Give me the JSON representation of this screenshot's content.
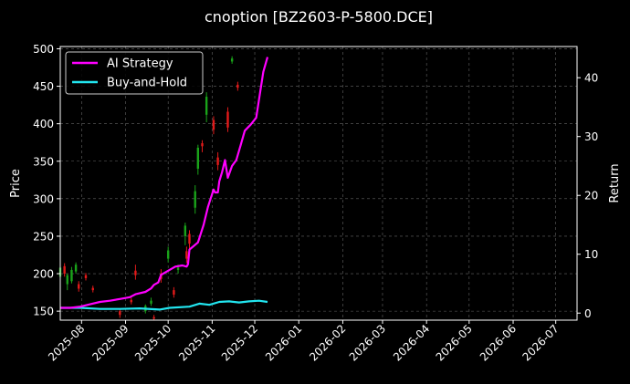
{
  "chart_data": {
    "type": "line",
    "title": "cnoption [BZ2603-P-5800.DCE]",
    "xlabel": "",
    "ylabel_left": "Price",
    "ylabel_right": "Return",
    "x_ticks": [
      "2025-08",
      "2025-09",
      "2025-10",
      "2025-11",
      "2025-12",
      "2026-01",
      "2026-02",
      "2026-03",
      "2026-04",
      "2026-05",
      "2026-06",
      "2026-07"
    ],
    "x_range": [
      "2025-07-17",
      "2026-07-16"
    ],
    "y_left_ticks": [
      150,
      200,
      250,
      300,
      350,
      400,
      450,
      500
    ],
    "y_left_range": [
      138,
      503
    ],
    "y_right_ticks": [
      0,
      10,
      20,
      30,
      40
    ],
    "y_right_range": [
      -1.2,
      45.3
    ],
    "grid": true,
    "legend_position": "top-left",
    "colors": {
      "ai": "#ff00ff",
      "bh": "#22e5ef",
      "up": "#1aa31a",
      "down": "#e31a1a",
      "grid": "#666666"
    },
    "series": [
      {
        "name": "AI Strategy",
        "axis": "right",
        "points": [
          [
            "2025-07-17",
            0.9
          ],
          [
            "2025-07-24",
            0.9
          ],
          [
            "2025-07-31",
            1.1
          ],
          [
            "2025-08-07",
            1.5
          ],
          [
            "2025-08-14",
            1.9
          ],
          [
            "2025-08-21",
            2.1
          ],
          [
            "2025-08-28",
            2.4
          ],
          [
            "2025-09-04",
            2.7
          ],
          [
            "2025-09-08",
            3.2
          ],
          [
            "2025-09-15",
            3.6
          ],
          [
            "2025-09-19",
            4.2
          ],
          [
            "2025-09-21",
            4.8
          ],
          [
            "2025-09-24",
            5.2
          ],
          [
            "2025-09-26",
            6.5
          ],
          [
            "2025-10-01",
            7.2
          ],
          [
            "2025-10-06",
            7.9
          ],
          [
            "2025-10-11",
            8.1
          ],
          [
            "2025-10-14",
            7.9
          ],
          [
            "2025-10-15",
            8.3
          ],
          [
            "2025-10-16",
            10.8
          ],
          [
            "2025-10-22",
            12.0
          ],
          [
            "2025-10-26",
            15.0
          ],
          [
            "2025-10-29",
            18.0
          ],
          [
            "2025-11-02",
            21.0
          ],
          [
            "2025-11-03",
            20.5
          ],
          [
            "2025-11-05",
            20.5
          ],
          [
            "2025-11-06",
            22.4
          ],
          [
            "2025-11-08",
            24.0
          ],
          [
            "2025-11-10",
            26.0
          ],
          [
            "2025-11-12",
            23.0
          ],
          [
            "2025-11-15",
            25.0
          ],
          [
            "2025-11-18",
            26.0
          ],
          [
            "2025-11-21",
            28.5
          ],
          [
            "2025-11-24",
            31.0
          ],
          [
            "2025-11-28",
            32.0
          ],
          [
            "2025-12-02",
            33.2
          ],
          [
            "2025-12-07",
            41.0
          ],
          [
            "2025-12-10",
            43.5
          ]
        ]
      },
      {
        "name": "Buy-and-Hold",
        "axis": "right",
        "points": [
          [
            "2025-07-17",
            0.9
          ],
          [
            "2025-07-31",
            0.9
          ],
          [
            "2025-08-14",
            0.7
          ],
          [
            "2025-08-28",
            0.7
          ],
          [
            "2025-09-11",
            0.8
          ],
          [
            "2025-09-25",
            0.6
          ],
          [
            "2025-10-02",
            0.9
          ],
          [
            "2025-10-16",
            1.1
          ],
          [
            "2025-10-23",
            1.6
          ],
          [
            "2025-10-30",
            1.4
          ],
          [
            "2025-11-06",
            1.9
          ],
          [
            "2025-11-13",
            2.0
          ],
          [
            "2025-11-20",
            1.8
          ],
          [
            "2025-11-27",
            2.0
          ],
          [
            "2025-12-04",
            2.1
          ],
          [
            "2025-12-10",
            1.9
          ]
        ]
      }
    ],
    "candles": [
      {
        "date": "2025-07-17",
        "open": 196,
        "close": 208,
        "low": 192,
        "high": 212
      },
      {
        "date": "2025-07-20",
        "open": 210,
        "close": 200,
        "low": 196,
        "high": 214
      },
      {
        "date": "2025-07-22",
        "open": 186,
        "close": 198,
        "low": 178,
        "high": 200
      },
      {
        "date": "2025-07-25",
        "open": 190,
        "close": 205,
        "low": 187,
        "high": 209
      },
      {
        "date": "2025-07-28",
        "open": 203,
        "close": 212,
        "low": 200,
        "high": 215
      },
      {
        "date": "2025-07-30",
        "open": 186,
        "close": 180,
        "low": 176,
        "high": 190
      },
      {
        "date": "2025-08-04",
        "open": 198,
        "close": 194,
        "low": 191,
        "high": 201
      },
      {
        "date": "2025-08-09",
        "open": 181,
        "close": 178,
        "low": 175,
        "high": 184
      },
      {
        "date": "2025-08-28",
        "open": 150,
        "close": 145,
        "low": 141,
        "high": 152
      },
      {
        "date": "2025-09-05",
        "open": 165,
        "close": 162,
        "low": 159,
        "high": 168
      },
      {
        "date": "2025-09-08",
        "open": 204,
        "close": 198,
        "low": 192,
        "high": 212
      },
      {
        "date": "2025-09-15",
        "open": 150,
        "close": 157,
        "low": 147,
        "high": 159
      },
      {
        "date": "2025-09-19",
        "open": 160,
        "close": 164,
        "low": 157,
        "high": 168
      },
      {
        "date": "2025-09-21",
        "open": 142,
        "close": 140,
        "low": 138,
        "high": 145
      },
      {
        "date": "2025-09-26",
        "open": 200,
        "close": 193,
        "low": 188,
        "high": 206
      },
      {
        "date": "2025-10-01",
        "open": 220,
        "close": 231,
        "low": 215,
        "high": 236
      },
      {
        "date": "2025-10-05",
        "open": 178,
        "close": 172,
        "low": 168,
        "high": 182
      },
      {
        "date": "2025-10-08",
        "open": 205,
        "close": 208,
        "low": 200,
        "high": 212
      },
      {
        "date": "2025-10-13",
        "open": 250,
        "close": 264,
        "low": 238,
        "high": 268
      },
      {
        "date": "2025-10-14",
        "open": 230,
        "close": 220,
        "low": 214,
        "high": 236
      },
      {
        "date": "2025-10-16",
        "open": 253,
        "close": 240,
        "low": 232,
        "high": 258
      },
      {
        "date": "2025-10-20",
        "open": 288,
        "close": 310,
        "low": 280,
        "high": 318
      },
      {
        "date": "2025-10-22",
        "open": 340,
        "close": 368,
        "low": 332,
        "high": 372
      },
      {
        "date": "2025-10-25",
        "open": 374,
        "close": 370,
        "low": 362,
        "high": 378
      },
      {
        "date": "2025-10-28",
        "open": 412,
        "close": 436,
        "low": 402,
        "high": 442
      },
      {
        "date": "2025-11-02",
        "open": 405,
        "close": 392,
        "low": 386,
        "high": 410
      },
      {
        "date": "2025-11-05",
        "open": 355,
        "close": 345,
        "low": 338,
        "high": 362
      },
      {
        "date": "2025-11-12",
        "open": 416,
        "close": 395,
        "low": 389,
        "high": 422
      },
      {
        "date": "2025-11-15",
        "open": 483,
        "close": 487,
        "low": 480,
        "high": 490
      },
      {
        "date": "2025-11-19",
        "open": 452,
        "close": 448,
        "low": 444,
        "high": 456
      }
    ]
  }
}
